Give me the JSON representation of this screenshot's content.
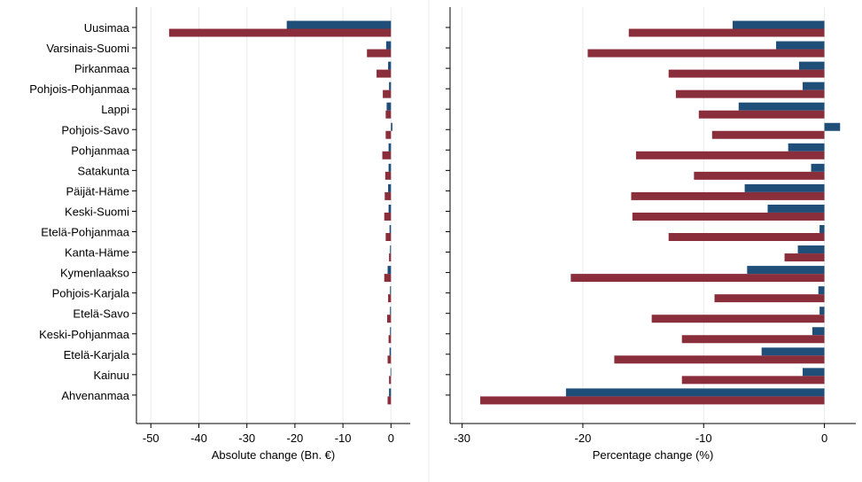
{
  "chart_data": [
    {
      "type": "bar",
      "orientation": "horizontal",
      "xlabel": "Absolute change (Bn. €)",
      "xlim": [
        -53,
        4
      ],
      "xticks": [
        -50,
        -40,
        -30,
        -20,
        -10,
        0
      ],
      "grid": true,
      "categories": [
        "Uusimaa",
        "Varsinais-Suomi",
        "Pirkanmaa",
        "Pohjois-Pohjanmaa",
        "Lappi",
        "Pohjois-Savo",
        "Pohjanmaa",
        "Satakunta",
        "Päijät-Häme",
        "Keski-Suomi",
        "Etelä-Pohjanmaa",
        "Kanta-Häme",
        "Kymenlaakso",
        "Pohjois-Karjala",
        "Etelä-Savo",
        "Keski-Pohjanmaa",
        "Etelä-Karjala",
        "Kainuu",
        "Ahvenanmaa"
      ],
      "series": [
        {
          "color": "#1f4e79",
          "values": [
            -21.7,
            -1.0,
            -0.6,
            -0.4,
            -0.9,
            0.3,
            -0.5,
            -0.5,
            -0.6,
            -0.5,
            -0.3,
            -0.2,
            -0.7,
            -0.2,
            -0.2,
            -0.2,
            -0.3,
            -0.1,
            -0.4
          ]
        },
        {
          "color": "#8b2e3c",
          "values": [
            -46.2,
            -5.0,
            -3.0,
            -1.7,
            -1.1,
            -1.1,
            -1.8,
            -1.2,
            -1.3,
            -1.4,
            -1.1,
            -0.4,
            -1.4,
            -0.6,
            -0.8,
            -0.5,
            -0.7,
            -0.4,
            -0.7
          ]
        }
      ]
    },
    {
      "type": "bar",
      "orientation": "horizontal",
      "xlabel": "Percentage change (%)",
      "xlim": [
        -31,
        2.6
      ],
      "xticks": [
        -30,
        -20,
        -10,
        0
      ],
      "grid": true,
      "categories": [
        "Uusimaa",
        "Varsinais-Suomi",
        "Pirkanmaa",
        "Pohjois-Pohjanmaa",
        "Lappi",
        "Pohjois-Savo",
        "Pohjanmaa",
        "Satakunta",
        "Päijät-Häme",
        "Keski-Suomi",
        "Etelä-Pohjanmaa",
        "Kanta-Häme",
        "Kymenlaakso",
        "Pohjois-Karjala",
        "Etelä-Savo",
        "Keski-Pohjanmaa",
        "Etelä-Karjala",
        "Kainuu",
        "Ahvenanmaa"
      ],
      "series": [
        {
          "color": "#1f4e79",
          "values": [
            -7.6,
            -4.0,
            -2.1,
            -1.8,
            -7.1,
            1.3,
            -3.0,
            -1.1,
            -6.6,
            -4.7,
            -0.4,
            -2.2,
            -6.4,
            -0.5,
            -0.4,
            -1.0,
            -5.2,
            -1.8,
            -21.4
          ]
        },
        {
          "color": "#8b2e3c",
          "values": [
            -16.2,
            -19.6,
            -12.9,
            -12.3,
            -10.4,
            -9.3,
            -15.6,
            -10.8,
            -16.0,
            -15.9,
            -12.9,
            -3.3,
            -21.0,
            -9.1,
            -14.3,
            -11.8,
            -17.4,
            -11.8,
            -28.5
          ]
        }
      ]
    }
  ]
}
